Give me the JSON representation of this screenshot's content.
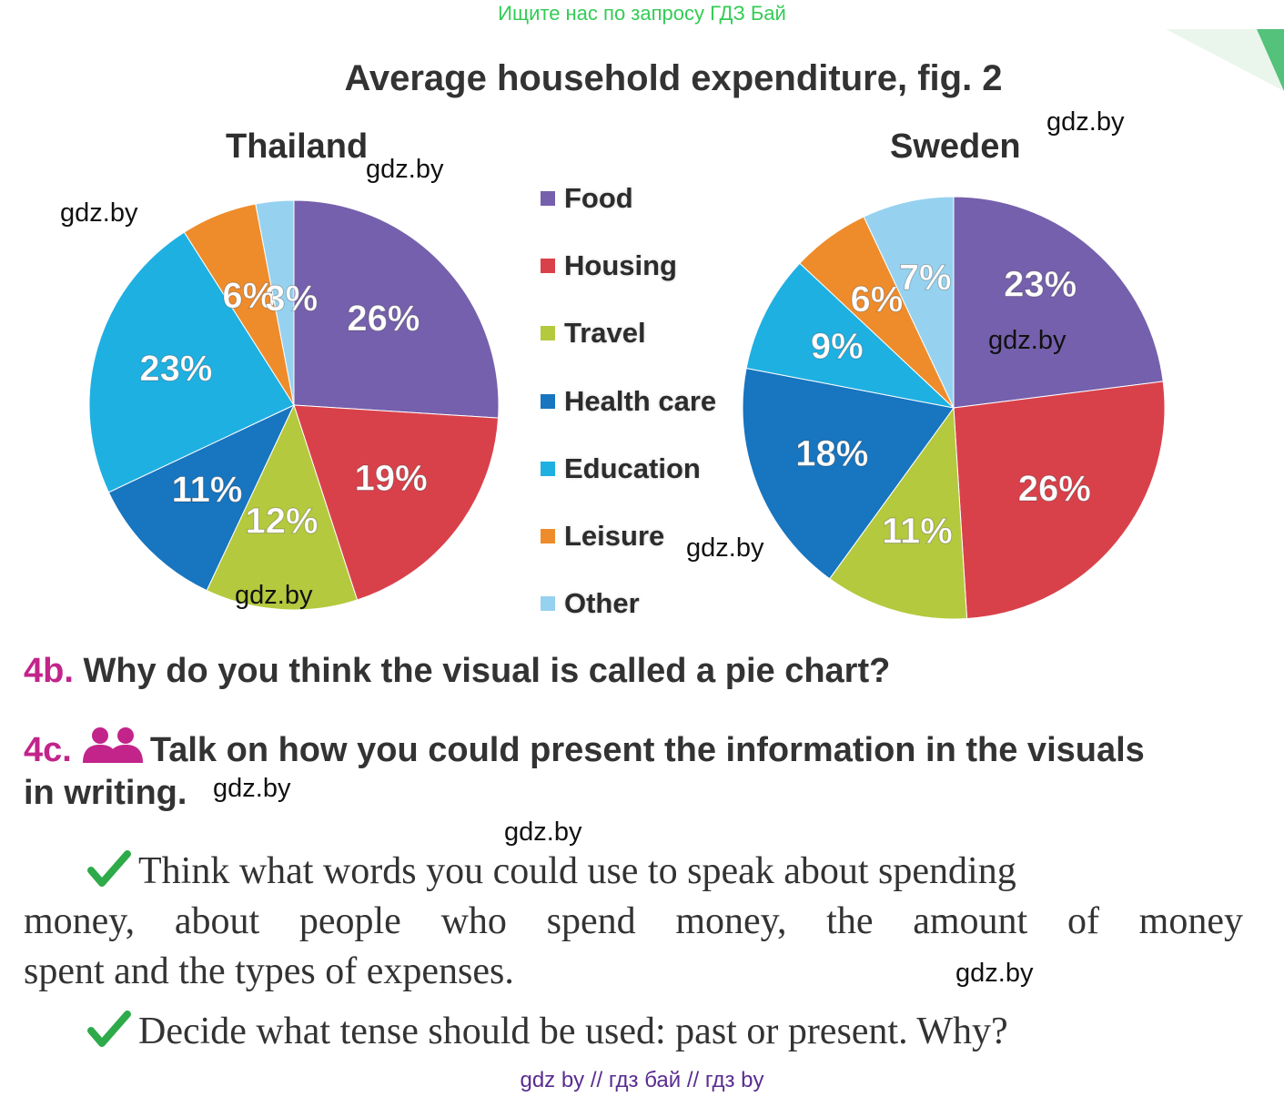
{
  "top_banner": "Ищите нас по запросу ГДЗ Бай",
  "figure_title": "Average household expenditure, fig. 2",
  "watermark": "gdz.by",
  "footer": "gdz by  //  гдз бай  //  гдз by",
  "chart_data": [
    {
      "type": "pie",
      "title": "Thailand",
      "categories": [
        "Food",
        "Housing",
        "Travel",
        "Health care",
        "Education",
        "Leisure",
        "Other"
      ],
      "values": [
        26,
        19,
        12,
        11,
        23,
        6,
        3
      ],
      "labels": [
        "26%",
        "19%",
        "12%",
        "11%",
        "23%",
        "6%",
        "3%"
      ],
      "colors": [
        "#7560ad",
        "#d9414a",
        "#b5c93e",
        "#1875bf",
        "#1fb0e2",
        "#ee8c2c",
        "#96d2ef"
      ],
      "legend": "center"
    },
    {
      "type": "pie",
      "title": "Sweden",
      "categories": [
        "Food",
        "Housing",
        "Travel",
        "Health care",
        "Education",
        "Leisure",
        "Other"
      ],
      "values": [
        23,
        26,
        11,
        18,
        9,
        6,
        7
      ],
      "labels": [
        "23%",
        "26%",
        "11%",
        "18%",
        "9%",
        "6%",
        "7%"
      ],
      "colors": [
        "#7560ad",
        "#d9414a",
        "#b5c93e",
        "#1875bf",
        "#1fb0e2",
        "#ee8c2c",
        "#96d2ef"
      ],
      "legend": "center"
    }
  ],
  "legend_items": [
    {
      "label": "Food",
      "color": "#7560ad"
    },
    {
      "label": "Housing",
      "color": "#d9414a"
    },
    {
      "label": "Travel",
      "color": "#b5c93e"
    },
    {
      "label": "Health care",
      "color": "#1875bf"
    },
    {
      "label": "Education",
      "color": "#1fb0e2"
    },
    {
      "label": "Leisure",
      "color": "#ee8c2c"
    },
    {
      "label": "Other",
      "color": "#96d2ef"
    }
  ],
  "q4b": {
    "number": "4b.",
    "text": "Why do you think the visual is called a pie chart?"
  },
  "q4c": {
    "number": "4c.",
    "icon": "pair-work-icon",
    "line1": "Talk on how you could present the information in the visuals",
    "line2": "in writing."
  },
  "tip1": {
    "icon": "check-icon",
    "line1": "Think what words you could use to speak about spending",
    "line2": "money, about people who spend money, the amount of money",
    "line3": "spent and the types of expenses."
  },
  "tip2": {
    "icon": "check-icon",
    "line1": "Decide what tense should be used: past or present. Why?"
  }
}
